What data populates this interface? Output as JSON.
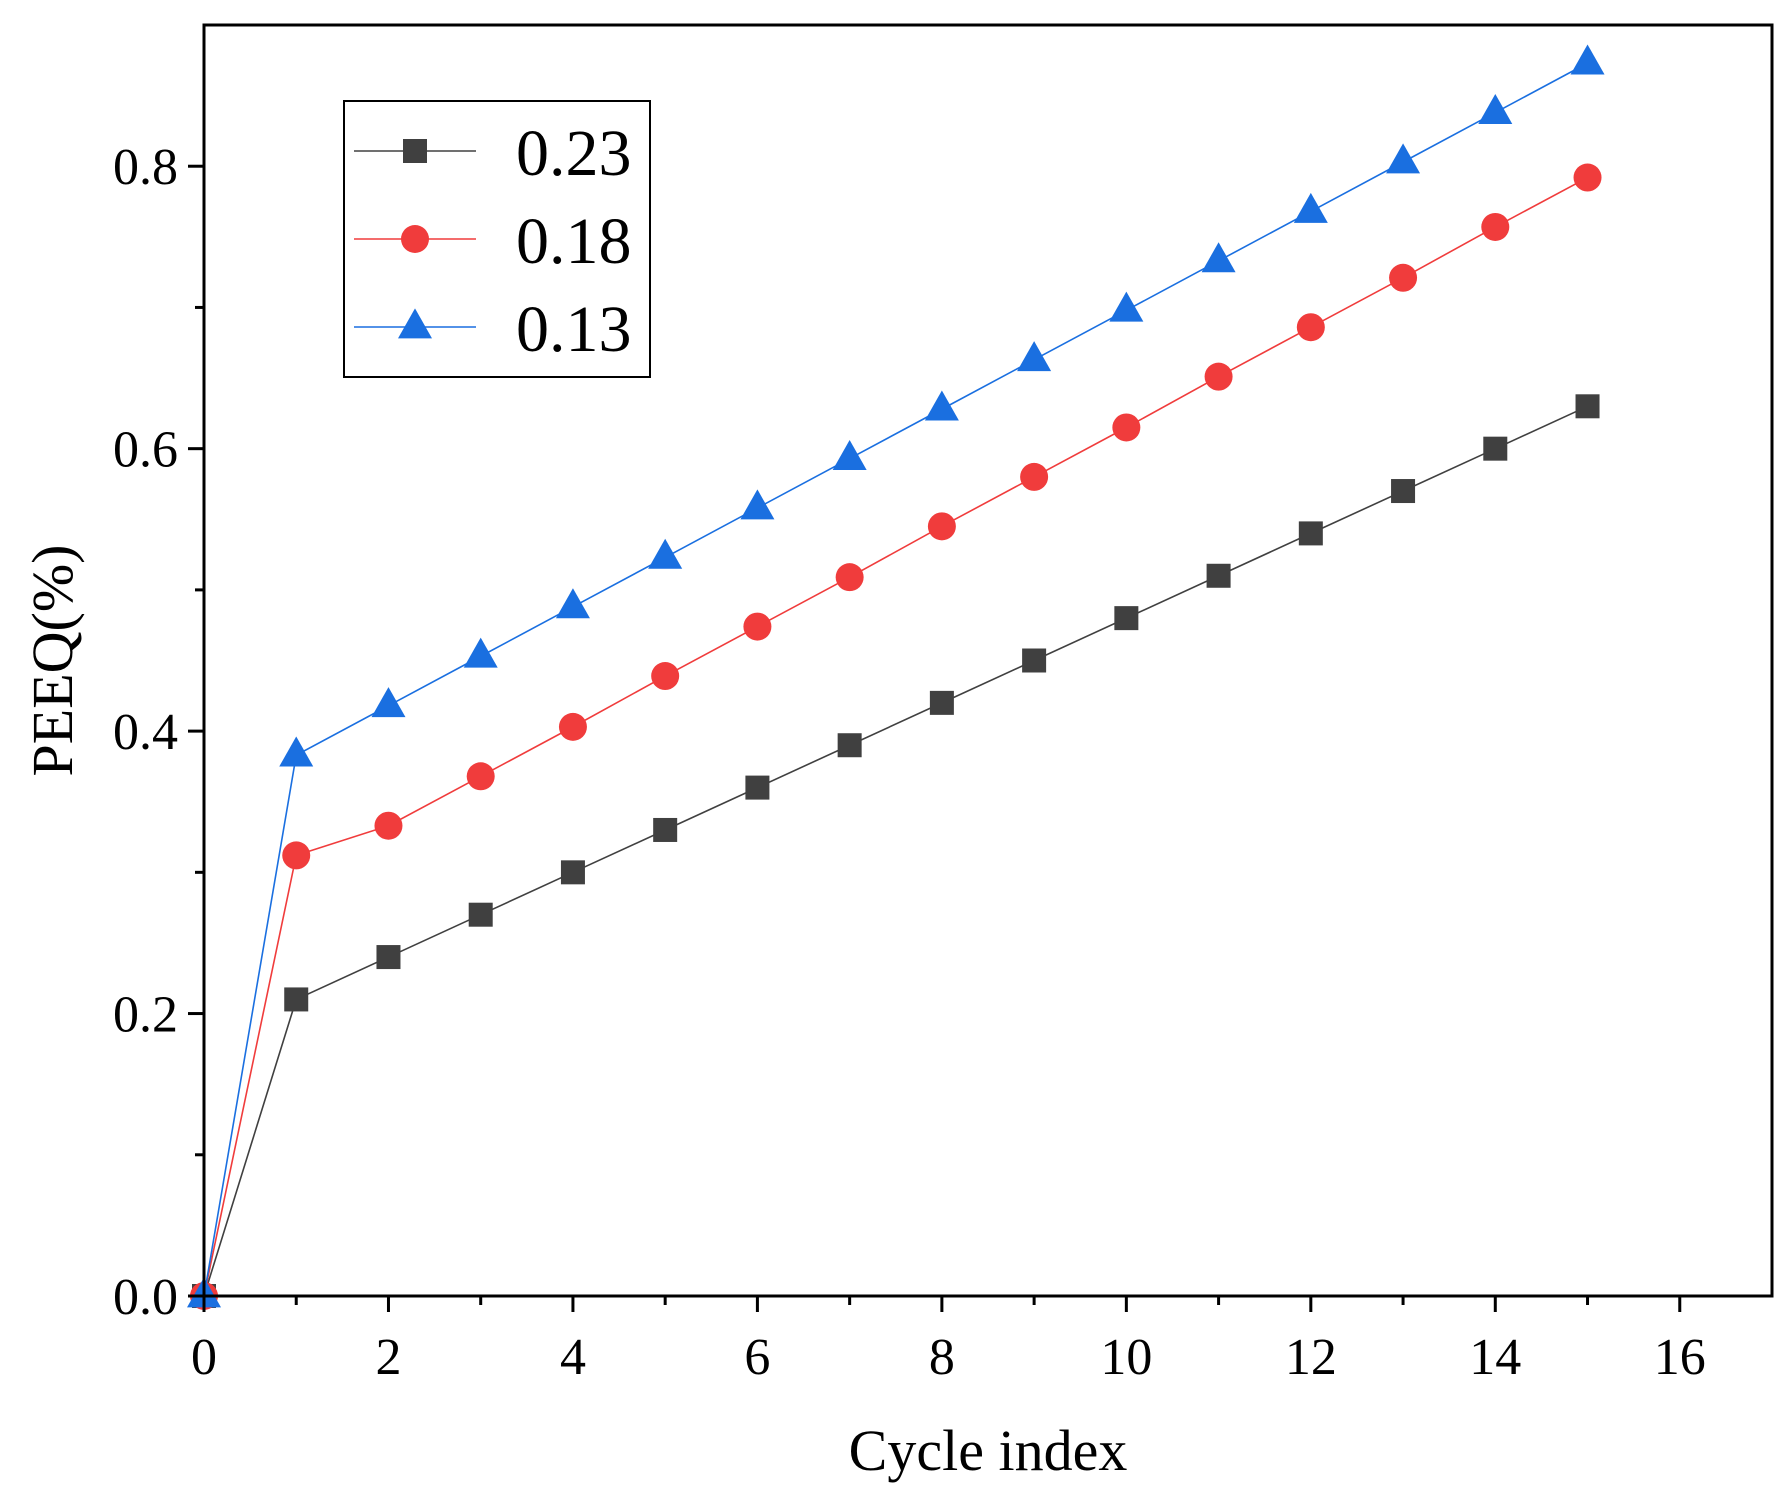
{
  "chart_data": {
    "type": "line",
    "title": "",
    "xlabel": "Cycle index",
    "ylabel": "PEEQ(%)",
    "xlim": [
      0,
      17
    ],
    "ylim": [
      0,
      0.9
    ],
    "x_major_ticks": [
      0,
      2,
      4,
      6,
      8,
      10,
      12,
      14,
      16
    ],
    "x_tick_labels": [
      "0",
      "2",
      "4",
      "6",
      "8",
      "10",
      "12",
      "14",
      "16"
    ],
    "x_minor_ticks": [
      1,
      3,
      5,
      7,
      9,
      11,
      13,
      15
    ],
    "y_major_ticks": [
      0.0,
      0.2,
      0.4,
      0.6,
      0.8
    ],
    "y_tick_labels": [
      "0.0",
      "0.2",
      "0.4",
      "0.6",
      "0.8"
    ],
    "y_minor_ticks": [
      0.1,
      0.3,
      0.5,
      0.7
    ],
    "grid": false,
    "legend_position": "top-left",
    "x": [
      0,
      1,
      2,
      3,
      4,
      5,
      6,
      7,
      8,
      9,
      10,
      11,
      12,
      13,
      14,
      15
    ],
    "series": [
      {
        "name": "0.23",
        "color": "#404040",
        "marker": "square",
        "values": [
          0.0,
          0.21,
          0.24,
          0.27,
          0.3,
          0.33,
          0.36,
          0.39,
          0.42,
          0.45,
          0.48,
          0.51,
          0.54,
          0.57,
          0.6,
          0.63
        ]
      },
      {
        "name": "0.18",
        "color": "#f03c3c",
        "marker": "circle",
        "values": [
          0.0,
          0.312,
          0.333,
          0.368,
          0.403,
          0.439,
          0.474,
          0.509,
          0.545,
          0.58,
          0.615,
          0.651,
          0.686,
          0.721,
          0.757,
          0.792
        ]
      },
      {
        "name": "0.13",
        "color": "#1a6fe0",
        "marker": "triangle",
        "values": [
          0.0,
          0.383,
          0.418,
          0.453,
          0.488,
          0.523,
          0.558,
          0.593,
          0.628,
          0.663,
          0.698,
          0.733,
          0.768,
          0.803,
          0.838,
          0.873
        ]
      }
    ]
  }
}
